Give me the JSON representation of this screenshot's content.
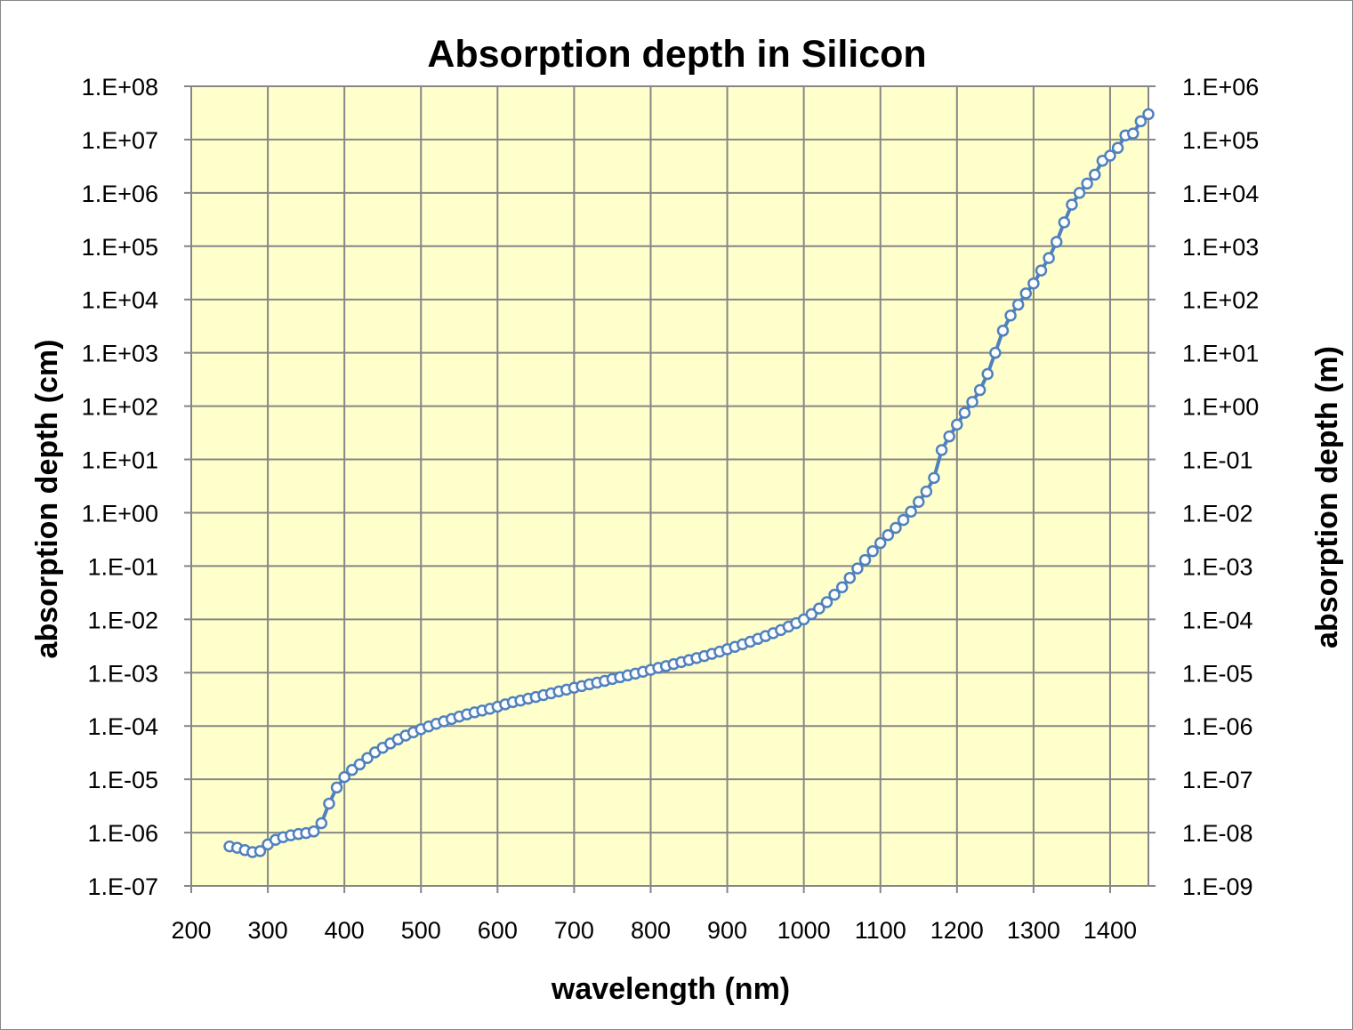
{
  "chart_data": {
    "type": "scatter",
    "title": "Absorption depth in Silicon",
    "xlabel": "wavelength (nm)",
    "ylabel": "absorption depth (cm)",
    "y2label": "absorption depth (m)",
    "xlim": [
      200,
      1450
    ],
    "ylim": [
      1e-07,
      100000000.0
    ],
    "y_scale": "log",
    "xticks": [
      "200",
      "300",
      "400",
      "500",
      "600",
      "700",
      "800",
      "900",
      "1000",
      "1100",
      "1200",
      "1300",
      "1400"
    ],
    "yticks": [
      "1.E-07",
      "1.E-06",
      "1.E-05",
      "1.E-04",
      "1.E-03",
      "1.E-02",
      "1.E-01",
      "1.E+00",
      "1.E+01",
      "1.E+02",
      "1.E+03",
      "1.E+04",
      "1.E+05",
      "1.E+06",
      "1.E+07",
      "1.E+08"
    ],
    "y2ticks": [
      "1.E-09",
      "1.E-08",
      "1.E-07",
      "1.E-06",
      "1.E-05",
      "1.E-04",
      "1.E-03",
      "1.E-02",
      "1.E-01",
      "1.E+00",
      "1.E+01",
      "1.E+02",
      "1.E+03",
      "1.E+04",
      "1.E+05",
      "1.E+06"
    ],
    "grid": true,
    "plot_background": "#FFFFCC",
    "series_color": "#4F81BD",
    "marker": "open-circle",
    "series": [
      {
        "x": [
          250,
          260,
          270,
          280,
          290,
          300,
          310,
          320,
          330,
          340,
          350,
          360,
          370,
          380,
          390,
          400,
          410,
          420,
          430,
          440,
          450,
          460,
          470,
          480,
          490,
          500,
          510,
          520,
          530,
          540,
          550,
          560,
          570,
          580,
          590,
          600,
          610,
          620,
          630,
          640,
          650,
          660,
          670,
          680,
          690,
          700,
          710,
          720,
          730,
          740,
          750,
          760,
          770,
          780,
          790,
          800,
          810,
          820,
          830,
          840,
          850,
          860,
          870,
          880,
          890,
          900,
          910,
          920,
          930,
          940,
          950,
          960,
          970,
          980,
          990,
          1000,
          1010,
          1020,
          1030,
          1040,
          1050,
          1060,
          1070,
          1080,
          1090,
          1100,
          1110,
          1120,
          1130,
          1140,
          1150,
          1160,
          1170,
          1180,
          1190,
          1200,
          1210,
          1220,
          1230,
          1240,
          1250,
          1260,
          1270,
          1280,
          1290,
          1300,
          1310,
          1320,
          1330,
          1340,
          1350,
          1360,
          1370,
          1380,
          1390,
          1400,
          1410,
          1420,
          1430,
          1440,
          1450
        ],
        "y": [
          5.5e-07,
          5.2e-07,
          4.7e-07,
          4.3e-07,
          4.5e-07,
          6e-07,
          7.3e-07,
          8.2e-07,
          8.9e-07,
          9.4e-07,
          9.8e-07,
          1.05e-06,
          1.5e-06,
          3.5e-06,
          7e-06,
          1.1e-05,
          1.5e-05,
          1.9e-05,
          2.5e-05,
          3.2e-05,
          3.9e-05,
          4.7e-05,
          5.6e-05,
          6.6e-05,
          7.6e-05,
          8.7e-05,
          9.8e-05,
          0.00011,
          0.000122,
          0.000135,
          0.00015,
          0.000165,
          0.00018,
          0.000195,
          0.00021,
          0.00023,
          0.000255,
          0.00028,
          0.0003,
          0.000325,
          0.00035,
          0.00038,
          0.00041,
          0.000445,
          0.00048,
          0.00052,
          0.00056,
          0.000605,
          0.00065,
          0.0007,
          0.00076,
          0.00082,
          0.00089,
          0.00096,
          0.00104,
          0.00113,
          0.00123,
          0.00133,
          0.00145,
          0.00158,
          0.00172,
          0.00188,
          0.00205,
          0.00225,
          0.00248,
          0.00275,
          0.00305,
          0.0034,
          0.0038,
          0.0043,
          0.00485,
          0.0055,
          0.0063,
          0.0073,
          0.0085,
          0.01,
          0.0125,
          0.016,
          0.021,
          0.029,
          0.04,
          0.06,
          0.09,
          0.13,
          0.19,
          0.27,
          0.38,
          0.52,
          0.73,
          1.05,
          1.6,
          2.5,
          4.5,
          15,
          27,
          45,
          75,
          120,
          200,
          400,
          1000,
          2600,
          5000,
          8000,
          13000,
          20000,
          35000,
          60000,
          120000,
          280000,
          600000,
          1000000,
          1500000,
          2200000,
          4000000,
          5000000,
          7000000,
          12000000,
          13000000,
          22000000,
          30000000
        ]
      }
    ]
  }
}
